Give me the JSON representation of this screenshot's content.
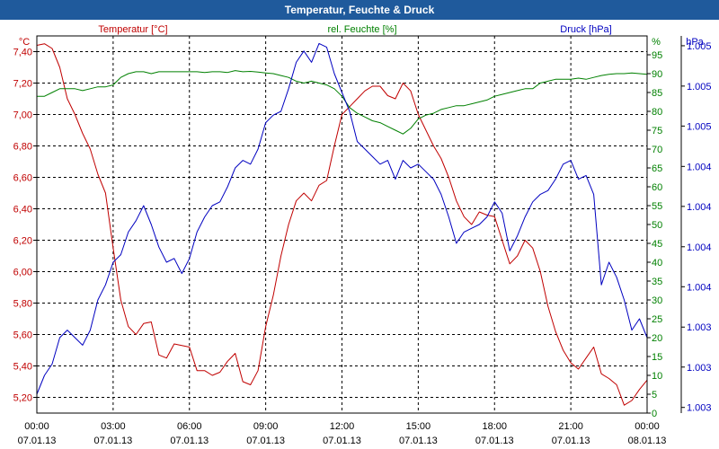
{
  "window": {
    "title": "Temperatur, Feuchte & Druck"
  },
  "colors": {
    "temperature": "#c00000",
    "humidity": "#008000",
    "pressure": "#0000c0",
    "titlebar": "#1f5a9c",
    "grid": "#000000"
  },
  "chart_data": {
    "type": "line",
    "title": "Temperatur, Feuchte & Druck",
    "grid": true,
    "x": {
      "ticks": [
        {
          "time": "00:00",
          "date": "07.01.13"
        },
        {
          "time": "03:00",
          "date": "07.01.13"
        },
        {
          "time": "06:00",
          "date": "07.01.13"
        },
        {
          "time": "09:00",
          "date": "07.01.13"
        },
        {
          "time": "12:00",
          "date": "07.01.13"
        },
        {
          "time": "15:00",
          "date": "07.01.13"
        },
        {
          "time": "18:00",
          "date": "07.01.13"
        },
        {
          "time": "21:00",
          "date": "07.01.13"
        },
        {
          "time": "00:00",
          "date": "08.01.13"
        }
      ],
      "range_hours": [
        0,
        24
      ]
    },
    "axes": {
      "temperature": {
        "label": "Temperatur [°C]",
        "unit": "°C",
        "ylim": [
          5.1,
          7.5
        ],
        "tick_values": [
          5.2,
          5.4,
          5.6,
          5.8,
          6.0,
          6.2,
          6.4,
          6.6,
          6.8,
          7.0,
          7.2,
          7.4
        ],
        "tick_labels": [
          "5,20",
          "5,40",
          "5,60",
          "5,80",
          "6,00",
          "6,20",
          "6,40",
          "6,60",
          "6,80",
          "7,00",
          "7,20",
          "7,40"
        ]
      },
      "humidity": {
        "label": "rel. Feuchte [%]",
        "unit": "%",
        "ylim": [
          0,
          100
        ],
        "tick_values": [
          0,
          5,
          10,
          15,
          20,
          25,
          30,
          35,
          40,
          45,
          50,
          55,
          60,
          65,
          70,
          75,
          80,
          85,
          90,
          95
        ],
        "tick_labels": [
          "0",
          "5",
          "10",
          "15",
          "20",
          "25",
          "30",
          "35",
          "40",
          "45",
          "50",
          "55",
          "60",
          "65",
          "70",
          "75",
          "80",
          "85",
          "90",
          "95"
        ]
      },
      "pressure": {
        "label": "Druck [hPa]",
        "unit": "hPa",
        "ylim": [
          0,
          1
        ],
        "tick_values": [
          0.015,
          0.122,
          0.228,
          0.335,
          0.441,
          0.548,
          0.654,
          0.761,
          0.867,
          0.974
        ],
        "tick_labels": [
          "1.003",
          "1.003",
          "1.003",
          "1.004",
          "1.004",
          "1.004",
          "1.004",
          "1.005",
          "1.005",
          "1.005"
        ]
      }
    },
    "series": [
      {
        "name": "Temperatur [°C]",
        "axis": "temperature",
        "color": "#c00000",
        "points": [
          [
            0,
            7.44
          ],
          [
            0.3,
            7.45
          ],
          [
            0.6,
            7.42
          ],
          [
            0.9,
            7.3
          ],
          [
            1.2,
            7.1
          ],
          [
            1.5,
            7.0
          ],
          [
            1.8,
            6.88
          ],
          [
            2.1,
            6.78
          ],
          [
            2.4,
            6.62
          ],
          [
            2.7,
            6.5
          ],
          [
            3.0,
            6.15
          ],
          [
            3.3,
            5.82
          ],
          [
            3.6,
            5.65
          ],
          [
            3.9,
            5.6
          ],
          [
            4.2,
            5.67
          ],
          [
            4.5,
            5.68
          ],
          [
            4.8,
            5.47
          ],
          [
            5.1,
            5.45
          ],
          [
            5.4,
            5.54
          ],
          [
            5.7,
            5.53
          ],
          [
            6.0,
            5.52
          ],
          [
            6.3,
            5.37
          ],
          [
            6.6,
            5.37
          ],
          [
            6.9,
            5.34
          ],
          [
            7.2,
            5.36
          ],
          [
            7.5,
            5.43
          ],
          [
            7.8,
            5.48
          ],
          [
            8.1,
            5.3
          ],
          [
            8.4,
            5.28
          ],
          [
            8.7,
            5.37
          ],
          [
            9.0,
            5.65
          ],
          [
            9.3,
            5.85
          ],
          [
            9.6,
            6.1
          ],
          [
            9.9,
            6.3
          ],
          [
            10.2,
            6.45
          ],
          [
            10.5,
            6.5
          ],
          [
            10.8,
            6.45
          ],
          [
            11.1,
            6.55
          ],
          [
            11.4,
            6.58
          ],
          [
            11.7,
            6.8
          ],
          [
            12.0,
            7.0
          ],
          [
            12.3,
            7.05
          ],
          [
            12.6,
            7.1
          ],
          [
            12.9,
            7.15
          ],
          [
            13.2,
            7.18
          ],
          [
            13.5,
            7.18
          ],
          [
            13.8,
            7.12
          ],
          [
            14.1,
            7.1
          ],
          [
            14.4,
            7.2
          ],
          [
            14.7,
            7.15
          ],
          [
            15.0,
            7.0
          ],
          [
            15.3,
            6.9
          ],
          [
            15.6,
            6.8
          ],
          [
            15.9,
            6.72
          ],
          [
            16.2,
            6.6
          ],
          [
            16.5,
            6.45
          ],
          [
            16.8,
            6.35
          ],
          [
            17.1,
            6.3
          ],
          [
            17.4,
            6.38
          ],
          [
            17.7,
            6.36
          ],
          [
            18.0,
            6.35
          ],
          [
            18.3,
            6.2
          ],
          [
            18.6,
            6.05
          ],
          [
            18.9,
            6.1
          ],
          [
            19.2,
            6.2
          ],
          [
            19.5,
            6.15
          ],
          [
            19.8,
            6.0
          ],
          [
            20.1,
            5.78
          ],
          [
            20.4,
            5.62
          ],
          [
            20.7,
            5.5
          ],
          [
            21.0,
            5.42
          ],
          [
            21.3,
            5.38
          ],
          [
            21.6,
            5.45
          ],
          [
            21.9,
            5.52
          ],
          [
            22.2,
            5.35
          ],
          [
            22.5,
            5.32
          ],
          [
            22.8,
            5.28
          ],
          [
            23.1,
            5.15
          ],
          [
            23.4,
            5.18
          ],
          [
            23.7,
            5.25
          ],
          [
            24.0,
            5.31
          ]
        ]
      },
      {
        "name": "rel. Feuchte [%]",
        "axis": "humidity",
        "color": "#008000",
        "points": [
          [
            0,
            84
          ],
          [
            0.3,
            84
          ],
          [
            0.6,
            85
          ],
          [
            0.9,
            86
          ],
          [
            1.2,
            86
          ],
          [
            1.5,
            86
          ],
          [
            1.8,
            85.5
          ],
          [
            2.1,
            86
          ],
          [
            2.4,
            86.5
          ],
          [
            2.7,
            86.5
          ],
          [
            3.0,
            87
          ],
          [
            3.3,
            89
          ],
          [
            3.6,
            90
          ],
          [
            3.9,
            90.5
          ],
          [
            4.2,
            90.5
          ],
          [
            4.5,
            90
          ],
          [
            4.8,
            90.5
          ],
          [
            5.1,
            90.5
          ],
          [
            5.4,
            90.5
          ],
          [
            5.7,
            90.5
          ],
          [
            6.0,
            90.5
          ],
          [
            6.3,
            90.5
          ],
          [
            6.6,
            90.3
          ],
          [
            6.9,
            90.5
          ],
          [
            7.2,
            90.5
          ],
          [
            7.5,
            90.3
          ],
          [
            7.8,
            90.8
          ],
          [
            8.1,
            90.5
          ],
          [
            8.4,
            90.6
          ],
          [
            8.7,
            90.4
          ],
          [
            9.0,
            90.2
          ],
          [
            9.3,
            90
          ],
          [
            9.6,
            89.5
          ],
          [
            9.9,
            89
          ],
          [
            10.2,
            88
          ],
          [
            10.5,
            87.5
          ],
          [
            10.8,
            88
          ],
          [
            11.1,
            87.5
          ],
          [
            11.4,
            87
          ],
          [
            11.7,
            86
          ],
          [
            12.0,
            84
          ],
          [
            12.3,
            81
          ],
          [
            12.6,
            79.5
          ],
          [
            12.9,
            78.5
          ],
          [
            13.2,
            77.5
          ],
          [
            13.5,
            77
          ],
          [
            13.8,
            76
          ],
          [
            14.1,
            75
          ],
          [
            14.4,
            74
          ],
          [
            14.7,
            75.5
          ],
          [
            15.0,
            78
          ],
          [
            15.3,
            79
          ],
          [
            15.6,
            79.5
          ],
          [
            15.9,
            80.5
          ],
          [
            16.2,
            81
          ],
          [
            16.5,
            81.5
          ],
          [
            16.8,
            81.5
          ],
          [
            17.1,
            82
          ],
          [
            17.4,
            82.5
          ],
          [
            17.7,
            83
          ],
          [
            18.0,
            84
          ],
          [
            18.3,
            84.5
          ],
          [
            18.6,
            85
          ],
          [
            18.9,
            85.5
          ],
          [
            19.2,
            86
          ],
          [
            19.5,
            86
          ],
          [
            19.8,
            87.5
          ],
          [
            20.1,
            88
          ],
          [
            20.4,
            88.5
          ],
          [
            20.7,
            88.5
          ],
          [
            21.0,
            88.5
          ],
          [
            21.3,
            88.8
          ],
          [
            21.6,
            88.5
          ],
          [
            21.9,
            89
          ],
          [
            22.2,
            89.5
          ],
          [
            22.5,
            89.8
          ],
          [
            22.8,
            90
          ],
          [
            23.1,
            90
          ],
          [
            23.4,
            90.2
          ],
          [
            23.7,
            90
          ],
          [
            24.0,
            89.8
          ]
        ]
      },
      {
        "name": "Druck [hPa]",
        "axis": "pressure",
        "color": "#0000c0",
        "points": [
          [
            0,
            0.05
          ],
          [
            0.3,
            0.1
          ],
          [
            0.6,
            0.13
          ],
          [
            0.9,
            0.2
          ],
          [
            1.2,
            0.22
          ],
          [
            1.5,
            0.2
          ],
          [
            1.8,
            0.18
          ],
          [
            2.1,
            0.22
          ],
          [
            2.4,
            0.3
          ],
          [
            2.7,
            0.34
          ],
          [
            3.0,
            0.4
          ],
          [
            3.3,
            0.42
          ],
          [
            3.6,
            0.48
          ],
          [
            3.9,
            0.51
          ],
          [
            4.2,
            0.55
          ],
          [
            4.5,
            0.5
          ],
          [
            4.8,
            0.44
          ],
          [
            5.1,
            0.4
          ],
          [
            5.4,
            0.41
          ],
          [
            5.7,
            0.37
          ],
          [
            6.0,
            0.41
          ],
          [
            6.3,
            0.48
          ],
          [
            6.6,
            0.52
          ],
          [
            6.9,
            0.55
          ],
          [
            7.2,
            0.56
          ],
          [
            7.5,
            0.6
          ],
          [
            7.8,
            0.65
          ],
          [
            8.1,
            0.67
          ],
          [
            8.4,
            0.66
          ],
          [
            8.7,
            0.7
          ],
          [
            9.0,
            0.77
          ],
          [
            9.3,
            0.79
          ],
          [
            9.6,
            0.8
          ],
          [
            9.9,
            0.86
          ],
          [
            10.2,
            0.93
          ],
          [
            10.5,
            0.96
          ],
          [
            10.8,
            0.93
          ],
          [
            11.1,
            0.98
          ],
          [
            11.4,
            0.97
          ],
          [
            11.7,
            0.9
          ],
          [
            12.0,
            0.85
          ],
          [
            12.3,
            0.8
          ],
          [
            12.6,
            0.72
          ],
          [
            12.9,
            0.7
          ],
          [
            13.2,
            0.68
          ],
          [
            13.5,
            0.66
          ],
          [
            13.8,
            0.67
          ],
          [
            14.1,
            0.62
          ],
          [
            14.4,
            0.67
          ],
          [
            14.7,
            0.65
          ],
          [
            15.0,
            0.66
          ],
          [
            15.3,
            0.64
          ],
          [
            15.6,
            0.62
          ],
          [
            15.9,
            0.58
          ],
          [
            16.2,
            0.52
          ],
          [
            16.5,
            0.45
          ],
          [
            16.8,
            0.48
          ],
          [
            17.1,
            0.49
          ],
          [
            17.4,
            0.5
          ],
          [
            17.7,
            0.52
          ],
          [
            18.0,
            0.56
          ],
          [
            18.3,
            0.53
          ],
          [
            18.6,
            0.43
          ],
          [
            18.9,
            0.47
          ],
          [
            19.2,
            0.52
          ],
          [
            19.5,
            0.56
          ],
          [
            19.8,
            0.58
          ],
          [
            20.1,
            0.59
          ],
          [
            20.4,
            0.62
          ],
          [
            20.7,
            0.66
          ],
          [
            21.0,
            0.67
          ],
          [
            21.3,
            0.62
          ],
          [
            21.6,
            0.63
          ],
          [
            21.9,
            0.58
          ],
          [
            22.2,
            0.34
          ],
          [
            22.5,
            0.4
          ],
          [
            22.8,
            0.36
          ],
          [
            23.1,
            0.3
          ],
          [
            23.4,
            0.22
          ],
          [
            23.7,
            0.25
          ],
          [
            24.0,
            0.2
          ]
        ]
      }
    ]
  }
}
